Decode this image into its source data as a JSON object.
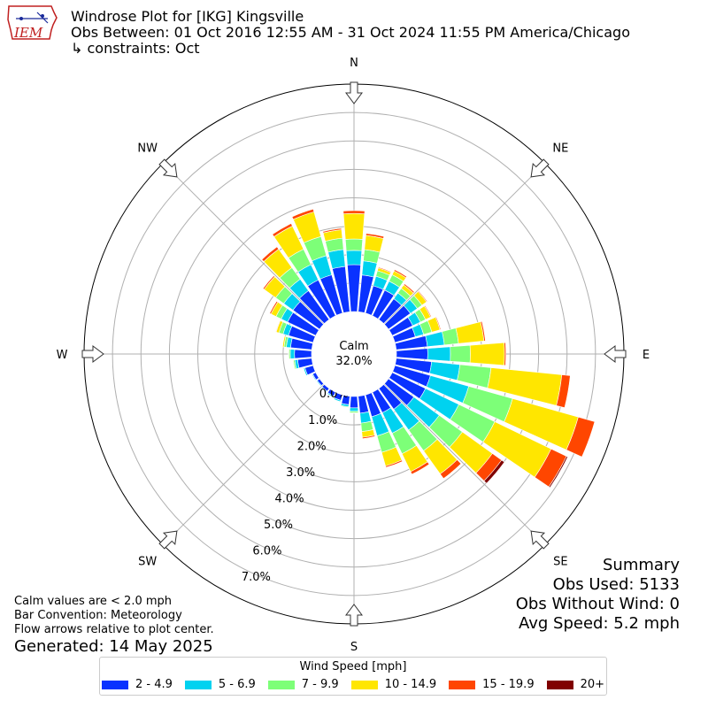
{
  "header": {
    "title": "Windrose Plot for [IKG] Kingsville",
    "obs_between": "Obs Between: 01 Oct 2016 12:55 AM - 31 Oct 2024 11:55 PM America/Chicago",
    "constraints": "↳ constraints: Oct"
  },
  "logo": {
    "text": "IEM"
  },
  "summary": {
    "title": "Summary",
    "obs_used": "Obs Used: 5133",
    "obs_without_wind": "Obs Without Wind: 0",
    "avg_speed": "Avg Speed: 5.2 mph"
  },
  "notes": {
    "calm": "Calm values are < 2.0 mph",
    "bar_convention": "Bar Convention: Meteorology",
    "flow_arrows": "Flow arrows relative to plot center.",
    "generated": "Generated: 14 May 2025"
  },
  "chart_data": {
    "type": "windrose",
    "title": "Windrose Plot for [IKG] Kingsville",
    "center_label": "Calm",
    "center_value": "32.0%",
    "cardinal_labels": [
      {
        "label": "N",
        "angle": 0
      },
      {
        "label": "NE",
        "angle": 45
      },
      {
        "label": "E",
        "angle": 90
      },
      {
        "label": "SE",
        "angle": 135
      },
      {
        "label": "S",
        "angle": 180
      },
      {
        "label": "SW",
        "angle": 225
      },
      {
        "label": "W",
        "angle": 270
      },
      {
        "label": "NW",
        "angle": 315
      }
    ],
    "radial_ticks": [
      "0.0%",
      "1.0%",
      "2.0%",
      "3.0%",
      "4.0%",
      "5.0%",
      "6.0%",
      "7.0%"
    ],
    "radial_range": [
      0,
      8
    ],
    "legend_title": "Wind Speed [mph]",
    "speed_bins": [
      {
        "label": "2 - 4.9",
        "color": "#0a32ff"
      },
      {
        "label": "5 - 6.9",
        "color": "#00d2f0"
      },
      {
        "label": "7 - 9.9",
        "color": "#7dff78"
      },
      {
        "label": "10 - 14.9",
        "color": "#ffe600"
      },
      {
        "label": "15 - 19.9",
        "color": "#ff4600"
      },
      {
        "label": "20+",
        "color": "#800000"
      }
    ],
    "sectors": [
      {
        "dir": 0,
        "values": [
          1.65,
          0.5,
          0.4,
          0.9,
          0.1,
          0
        ]
      },
      {
        "dir": 10,
        "values": [
          1.3,
          0.5,
          0.4,
          0.5,
          0.07,
          0
        ]
      },
      {
        "dir": 20,
        "values": [
          1.0,
          0.35,
          0.2,
          0.1,
          0.03,
          0
        ]
      },
      {
        "dir": 30,
        "values": [
          1.0,
          0.35,
          0.25,
          0.15,
          0.05,
          0
        ]
      },
      {
        "dir": 40,
        "values": [
          0.9,
          0.25,
          0.2,
          0.15,
          0.05,
          0
        ]
      },
      {
        "dir": 50,
        "values": [
          0.95,
          0.3,
          0.2,
          0.2,
          0.03,
          0
        ]
      },
      {
        "dir": 60,
        "values": [
          0.8,
          0.3,
          0.2,
          0.2,
          0.03,
          0
        ]
      },
      {
        "dir": 70,
        "values": [
          0.75,
          0.3,
          0.3,
          0.3,
          0.03,
          0
        ]
      },
      {
        "dir": 80,
        "values": [
          1.1,
          0.6,
          0.5,
          0.9,
          0.05,
          0
        ]
      },
      {
        "dir": 90,
        "values": [
          1.1,
          0.8,
          0.7,
          1.2,
          0.05,
          0
        ]
      },
      {
        "dir": 100,
        "values": [
          1.25,
          1.0,
          1.1,
          2.5,
          0.3,
          0
        ]
      },
      {
        "dir": 110,
        "values": [
          1.3,
          1.4,
          1.6,
          2.4,
          0.6,
          0
        ]
      },
      {
        "dir": 120,
        "values": [
          1.3,
          1.3,
          1.4,
          2.2,
          0.6,
          0.05
        ]
      },
      {
        "dir": 130,
        "values": [
          1.1,
          1.1,
          1.0,
          1.3,
          0.4,
          0.12
        ]
      },
      {
        "dir": 140,
        "values": [
          0.9,
          0.9,
          0.9,
          1.0,
          0.2,
          0
        ]
      },
      {
        "dir": 150,
        "values": [
          0.8,
          0.8,
          0.8,
          0.7,
          0.1,
          0
        ]
      },
      {
        "dir": 160,
        "values": [
          0.8,
          0.7,
          0.6,
          0.5,
          0.05,
          0
        ]
      },
      {
        "dir": 170,
        "values": [
          0.6,
          0.35,
          0.3,
          0.2,
          0.05,
          0
        ]
      },
      {
        "dir": 180,
        "values": [
          0.4,
          0.12,
          0.05,
          0.02,
          0,
          0
        ]
      },
      {
        "dir": 190,
        "values": [
          0.3,
          0.07,
          0.03,
          0,
          0,
          0
        ]
      },
      {
        "dir": 200,
        "values": [
          0.2,
          0.05,
          0,
          0,
          0,
          0
        ]
      },
      {
        "dir": 210,
        "values": [
          0.15,
          0.04,
          0,
          0,
          0,
          0
        ]
      },
      {
        "dir": 220,
        "values": [
          0.12,
          0.03,
          0,
          0,
          0,
          0
        ]
      },
      {
        "dir": 230,
        "values": [
          0.1,
          0.03,
          0,
          0,
          0,
          0
        ]
      },
      {
        "dir": 240,
        "values": [
          0.12,
          0.03,
          0,
          0,
          0,
          0
        ]
      },
      {
        "dir": 250,
        "values": [
          0.3,
          0.05,
          0.02,
          0,
          0,
          0
        ]
      },
      {
        "dir": 260,
        "values": [
          0.5,
          0.1,
          0.05,
          0.02,
          0,
          0
        ]
      },
      {
        "dir": 270,
        "values": [
          0.6,
          0.15,
          0.05,
          0.02,
          0,
          0
        ]
      },
      {
        "dir": 280,
        "values": [
          0.75,
          0.15,
          0.08,
          0.05,
          0,
          0
        ]
      },
      {
        "dir": 290,
        "values": [
          0.9,
          0.2,
          0.15,
          0.1,
          0.02,
          0
        ]
      },
      {
        "dir": 300,
        "values": [
          1.1,
          0.25,
          0.2,
          0.2,
          0.05,
          0
        ]
      },
      {
        "dir": 310,
        "values": [
          1.15,
          0.4,
          0.35,
          0.5,
          0.05,
          0
        ]
      },
      {
        "dir": 320,
        "values": [
          1.25,
          0.5,
          0.5,
          0.8,
          0.1,
          0
        ]
      },
      {
        "dir": 330,
        "values": [
          1.4,
          0.6,
          0.6,
          0.9,
          0.1,
          0
        ]
      },
      {
        "dir": 340,
        "values": [
          1.4,
          0.7,
          0.7,
          0.9,
          0.1,
          0
        ]
      },
      {
        "dir": 350,
        "values": [
          1.6,
          0.6,
          0.4,
          0.3,
          0.05,
          0
        ]
      }
    ]
  }
}
